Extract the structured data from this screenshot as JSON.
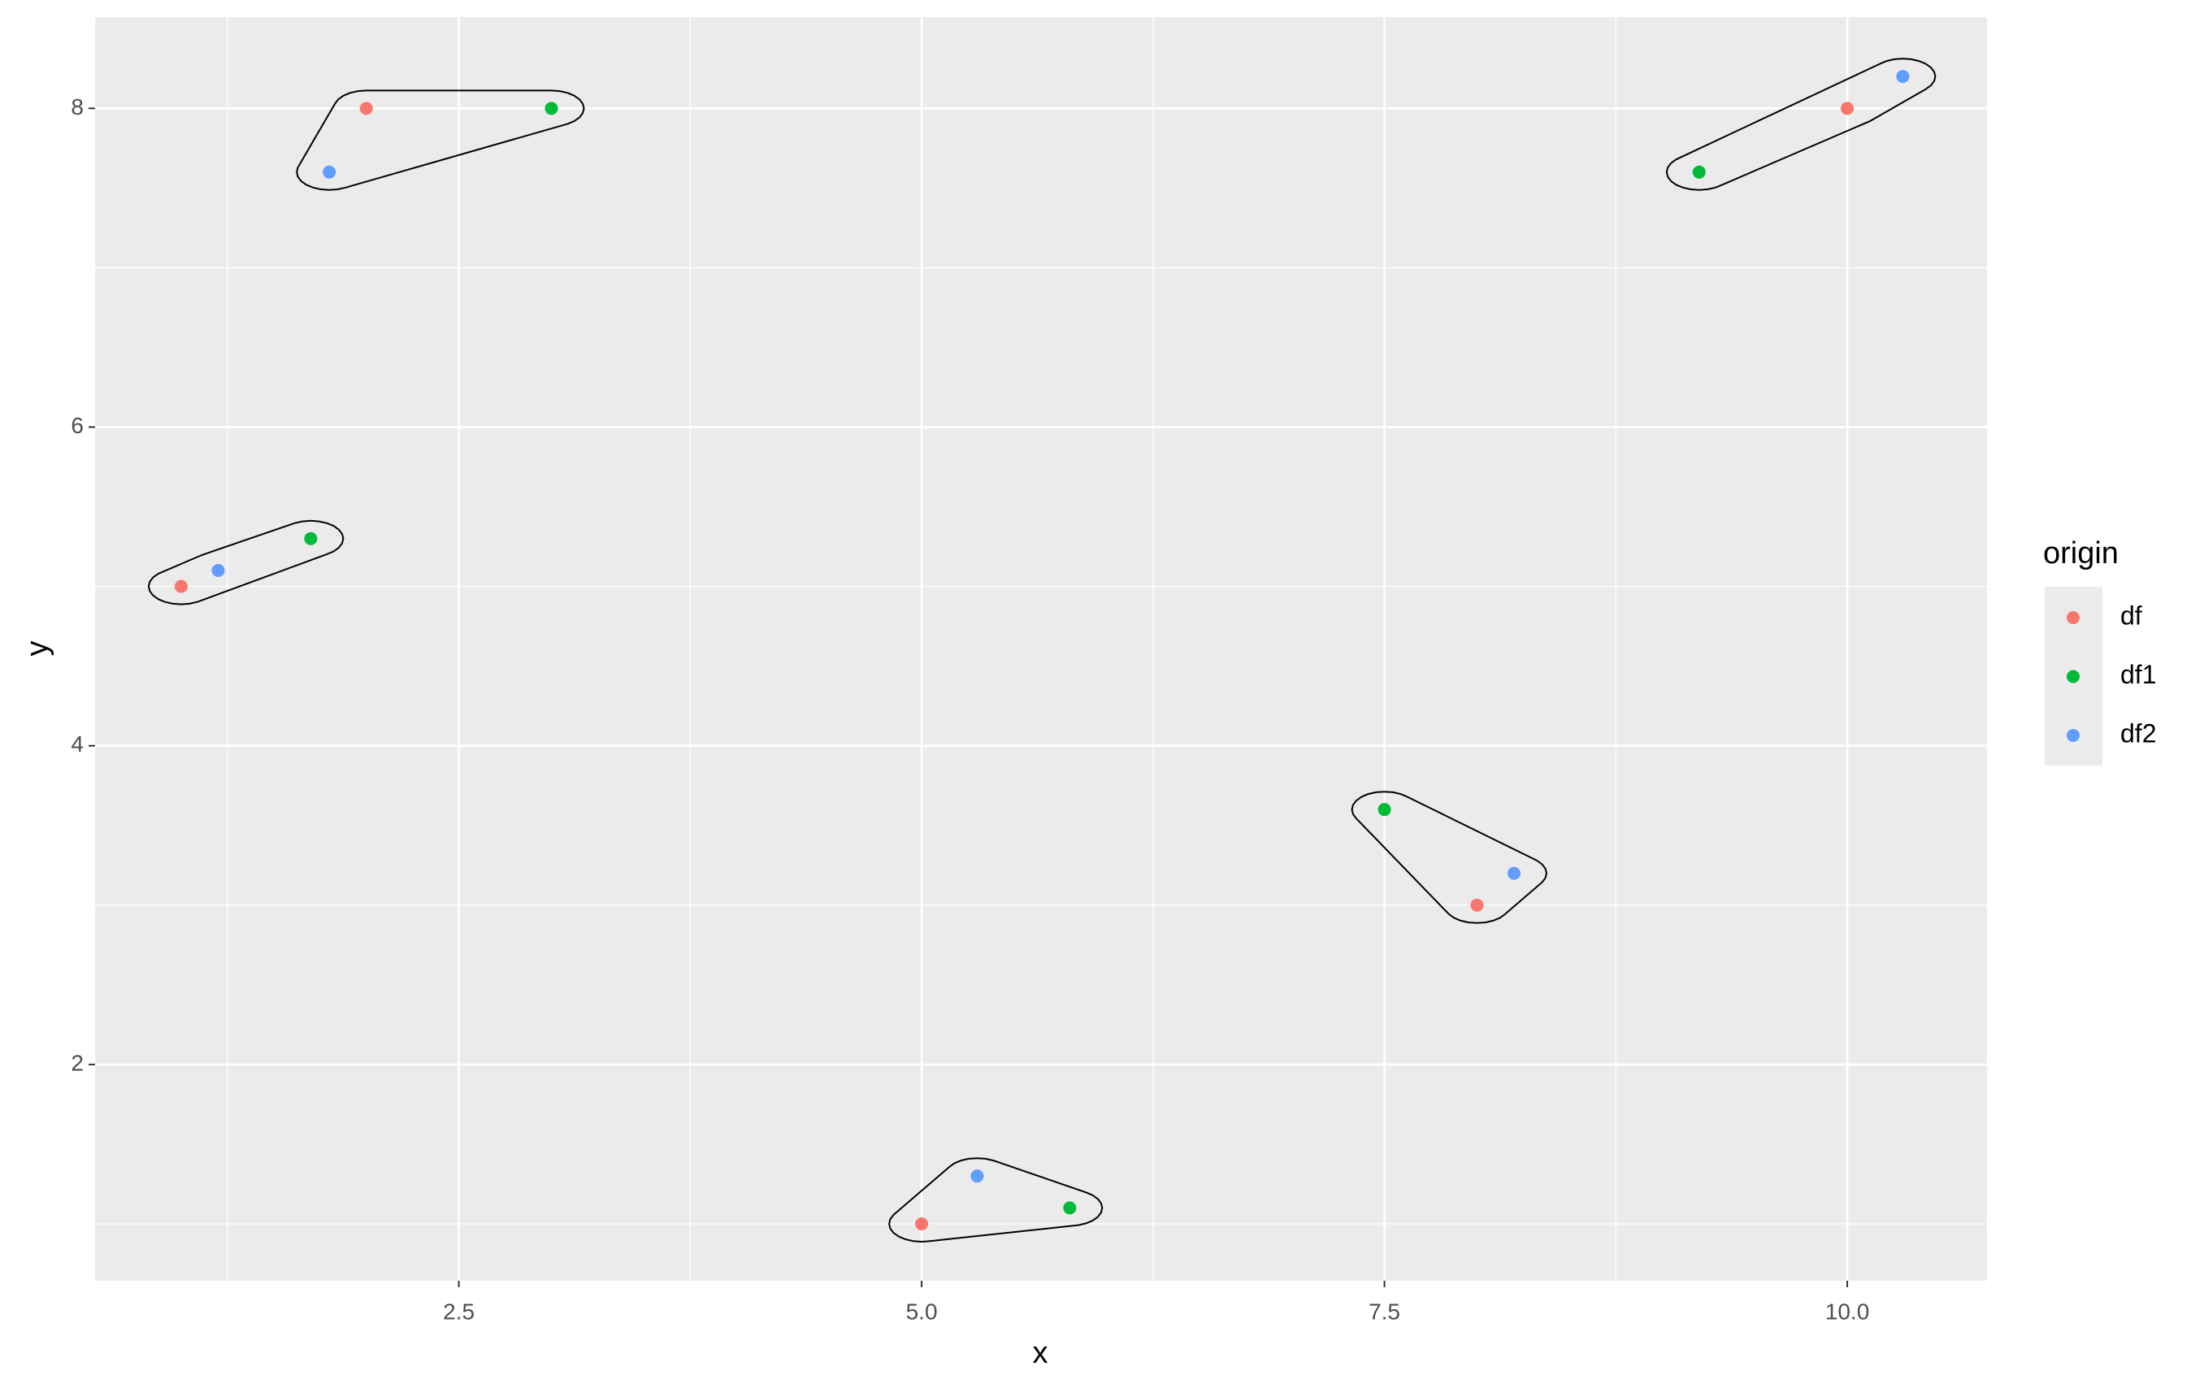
{
  "chart_data": {
    "type": "scatter",
    "x_label": "x",
    "y_label": "y",
    "legend_title": "origin",
    "legend": "right",
    "grid": true,
    "encircle": true,
    "xlim": [
      0.535,
      10.755
    ],
    "ylim": [
      0.643,
      8.573
    ],
    "xticks": [
      2.5,
      {
        "value": 5.0,
        "label": "5.0"
      },
      7.5,
      {
        "value": 10.0,
        "label": "10.0"
      }
    ],
    "yticks": [
      2,
      4,
      6,
      8
    ],
    "series": [
      {
        "name": "df",
        "color": "#f8766d",
        "x": [
          2,
          1,
          5,
          8,
          10
        ],
        "values": [
          8,
          5,
          1,
          3,
          8
        ]
      },
      {
        "name": "df1",
        "color": "#00ba38",
        "x": [
          3,
          1.7,
          5.8,
          7.5,
          9.2
        ],
        "values": [
          8,
          5.3,
          1.1,
          3.6,
          7.6
        ]
      },
      {
        "name": "df2",
        "color": "#619cff",
        "x": [
          1.8,
          1.2,
          5.3,
          8.2,
          10.3
        ],
        "values": [
          7.6,
          5.1,
          1.3,
          3.2,
          8.2
        ]
      }
    ]
  }
}
